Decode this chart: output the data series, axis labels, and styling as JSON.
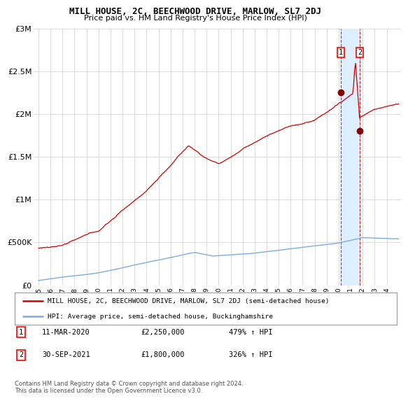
{
  "title": "MILL HOUSE, 2C, BEECHWOOD DRIVE, MARLOW, SL7 2DJ",
  "subtitle": "Price paid vs. HM Land Registry's House Price Index (HPI)",
  "y_max": 3000000,
  "yticks": [
    0,
    500000,
    1000000,
    1500000,
    2000000,
    2500000,
    3000000
  ],
  "ytick_labels": [
    "£0",
    "£500K",
    "£1M",
    "£1.5M",
    "£2M",
    "£2.5M",
    "£3M"
  ],
  "xtick_years": [
    1995,
    1996,
    1997,
    1998,
    1999,
    2000,
    2001,
    2002,
    2003,
    2004,
    2005,
    2006,
    2007,
    2008,
    2009,
    2010,
    2011,
    2012,
    2013,
    2014,
    2015,
    2016,
    2017,
    2018,
    2019,
    2020,
    2021,
    2022,
    2023,
    2024
  ],
  "hpi_color": "#7aaddb",
  "price_color": "#cc0000",
  "marker_color": "#880000",
  "vline_color": "#dd2222",
  "bg_highlight": "#ddeeff",
  "transaction1": {
    "year": 2020.19,
    "value": 2250000,
    "label": "1"
  },
  "transaction2": {
    "year": 2021.75,
    "value": 1800000,
    "label": "2"
  },
  "legend_entries": [
    "MILL HOUSE, 2C, BEECHWOOD DRIVE, MARLOW, SL7 2DJ (semi-detached house)",
    "HPI: Average price, semi-detached house, Buckinghamshire"
  ],
  "table_rows": [
    {
      "num": "1",
      "date": "11-MAR-2020",
      "price": "£2,250,000",
      "pct": "479% ↑ HPI"
    },
    {
      "num": "2",
      "date": "30-SEP-2021",
      "price": "£1,800,000",
      "pct": "326% ↑ HPI"
    }
  ],
  "footnote": "Contains HM Land Registry data © Crown copyright and database right 2024.\nThis data is licensed under the Open Government Licence v3.0.",
  "background_color": "#ffffff"
}
